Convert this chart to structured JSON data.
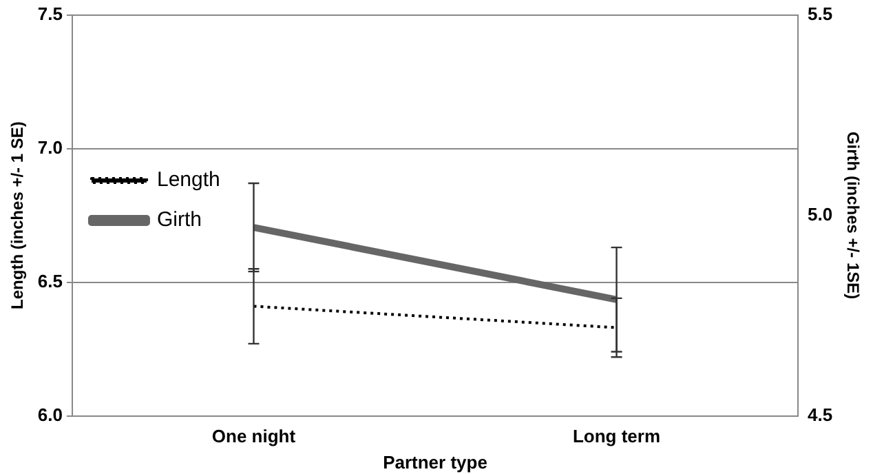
{
  "chart_data": {
    "type": "line",
    "xlabel": "Partner type",
    "ylabel": "Length (inches +/- 1 SE)",
    "y2label": "Girth (inches +/- 1SE)",
    "categories": [
      "One night",
      "Long term"
    ],
    "series": [
      {
        "name": "Length",
        "color": "#000000",
        "values": [
          6.41,
          6.33
        ],
        "errors": [
          0.14,
          0.11
        ],
        "line_style": "dotted"
      },
      {
        "name": "Girth",
        "color": "#666666",
        "values": [
          4.97,
          4.79
        ],
        "errors": [
          0.11,
          0.13
        ],
        "line_style": "solid",
        "axis": "y2"
      }
    ],
    "ylim": [
      6.0,
      7.5
    ],
    "yticks": [
      {
        "value": 6.0,
        "label": "6.0"
      },
      {
        "value": 6.5,
        "label": "6.5"
      },
      {
        "value": 7.0,
        "label": "7.0"
      },
      {
        "value": 7.5,
        "label": "7.5"
      }
    ],
    "y2lim": [
      4.5,
      5.5
    ],
    "y2ticks": [
      {
        "value": 4.5,
        "label": "4.5"
      },
      {
        "value": 5.0,
        "label": "5.0"
      },
      {
        "value": 5.5,
        "label": "5.5"
      }
    ],
    "grid": "y",
    "legend": "top",
    "marker": "none"
  }
}
